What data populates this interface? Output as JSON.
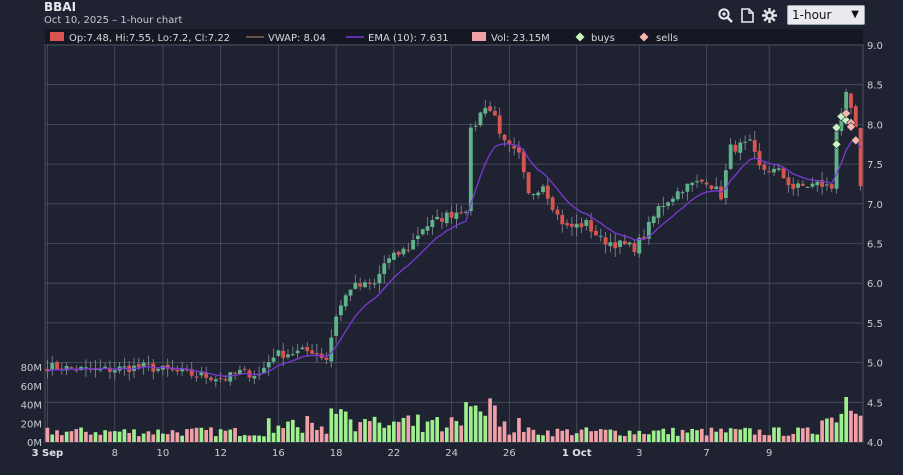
{
  "header": {
    "symbol": "BBAI",
    "subtitle": "Oct 10, 2025 – 1-hour chart",
    "interval": "1-hour"
  },
  "toolbar": {
    "icons": [
      "zoom-icon",
      "document-icon",
      "gear-icon"
    ]
  },
  "legend": {
    "ohlc": "Op:7.48, Hi:7.55, Lo:7.2, Cl:7.22",
    "vwap": "VWAP: 8.04",
    "ema": "EMA (10): 7.631",
    "vol": "Vol: 23.15M",
    "buys": "buys",
    "sells": "sells"
  },
  "colors": {
    "background": "#1f2331",
    "up": "#5fb38a",
    "down": "#d9534f",
    "ema": "#7a38d8",
    "vol_up": "#9ef08f",
    "vol_down": "#f2a0a8",
    "grid": "#4a5062",
    "buy_marker": "#c8f5c0",
    "sell_marker": "#f5b8b0"
  },
  "chart_data": {
    "type": "candlestick",
    "price_axis": {
      "min": 4.0,
      "max": 9.0,
      "ticks": [
        "9.0",
        "8.5",
        "8.0",
        "7.5",
        "7.0",
        "6.5",
        "6.0",
        "5.5",
        "5.0",
        "4.5",
        "4.0"
      ]
    },
    "volume_axis": {
      "min": 0,
      "max": 80,
      "unit": "M",
      "ticks": [
        "80M",
        "60M",
        "40M",
        "20M",
        "0M"
      ]
    },
    "x_ticks": [
      {
        "label": "3 Sep",
        "bold": true
      },
      {
        "label": "8",
        "bold": false
      },
      {
        "label": "10",
        "bold": false
      },
      {
        "label": "12",
        "bold": false
      },
      {
        "label": "16",
        "bold": false
      },
      {
        "label": "18",
        "bold": false
      },
      {
        "label": "22",
        "bold": false
      },
      {
        "label": "24",
        "bold": false
      },
      {
        "label": "26",
        "bold": false
      },
      {
        "label": "1 Oct",
        "bold": true
      },
      {
        "label": "3",
        "bold": false
      },
      {
        "label": "7",
        "bold": false
      },
      {
        "label": "9",
        "bold": false
      }
    ],
    "price_path_keypoints": [
      [
        0,
        4.95
      ],
      [
        10,
        4.9
      ],
      [
        20,
        4.95
      ],
      [
        30,
        4.85
      ],
      [
        37,
        4.8
      ],
      [
        40,
        4.88
      ],
      [
        44,
        4.85
      ],
      [
        47,
        5.1
      ],
      [
        55,
        5.15
      ],
      [
        58,
        5.05
      ],
      [
        60,
        5.6
      ],
      [
        63,
        5.95
      ],
      [
        68,
        5.98
      ],
      [
        70,
        6.25
      ],
      [
        75,
        6.45
      ],
      [
        78,
        6.7
      ],
      [
        83,
        6.85
      ],
      [
        87,
        6.95
      ],
      [
        88,
        7.9
      ],
      [
        91,
        8.25
      ],
      [
        93,
        8.1
      ],
      [
        95,
        7.75
      ],
      [
        98,
        7.6
      ],
      [
        100,
        7.1
      ],
      [
        103,
        7.25
      ],
      [
        106,
        6.85
      ],
      [
        108,
        6.7
      ],
      [
        112,
        6.75
      ],
      [
        115,
        6.55
      ],
      [
        118,
        6.5
      ],
      [
        122,
        6.45
      ],
      [
        124,
        6.6
      ],
      [
        127,
        6.95
      ],
      [
        132,
        7.2
      ],
      [
        137,
        7.3
      ],
      [
        140,
        7.1
      ],
      [
        142,
        7.7
      ],
      [
        146,
        7.75
      ],
      [
        148,
        7.45
      ],
      [
        152,
        7.4
      ],
      [
        155,
        7.2
      ],
      [
        160,
        7.25
      ],
      [
        163,
        7.2
      ],
      [
        164,
        7.95
      ],
      [
        166,
        8.35
      ],
      [
        168,
        7.95
      ],
      [
        169,
        7.22
      ]
    ],
    "ema_period": 10,
    "buys": [
      {
        "i": 164,
        "price": 7.75
      },
      {
        "i": 164,
        "price": 7.96
      },
      {
        "i": 165,
        "price": 8.1
      },
      {
        "i": 166,
        "price": 8.05
      }
    ],
    "sells": [
      {
        "i": 166,
        "price": 8.14
      },
      {
        "i": 167,
        "price": 8.02
      },
      {
        "i": 167,
        "price": 7.97
      },
      {
        "i": 168,
        "price": 7.8
      }
    ]
  }
}
